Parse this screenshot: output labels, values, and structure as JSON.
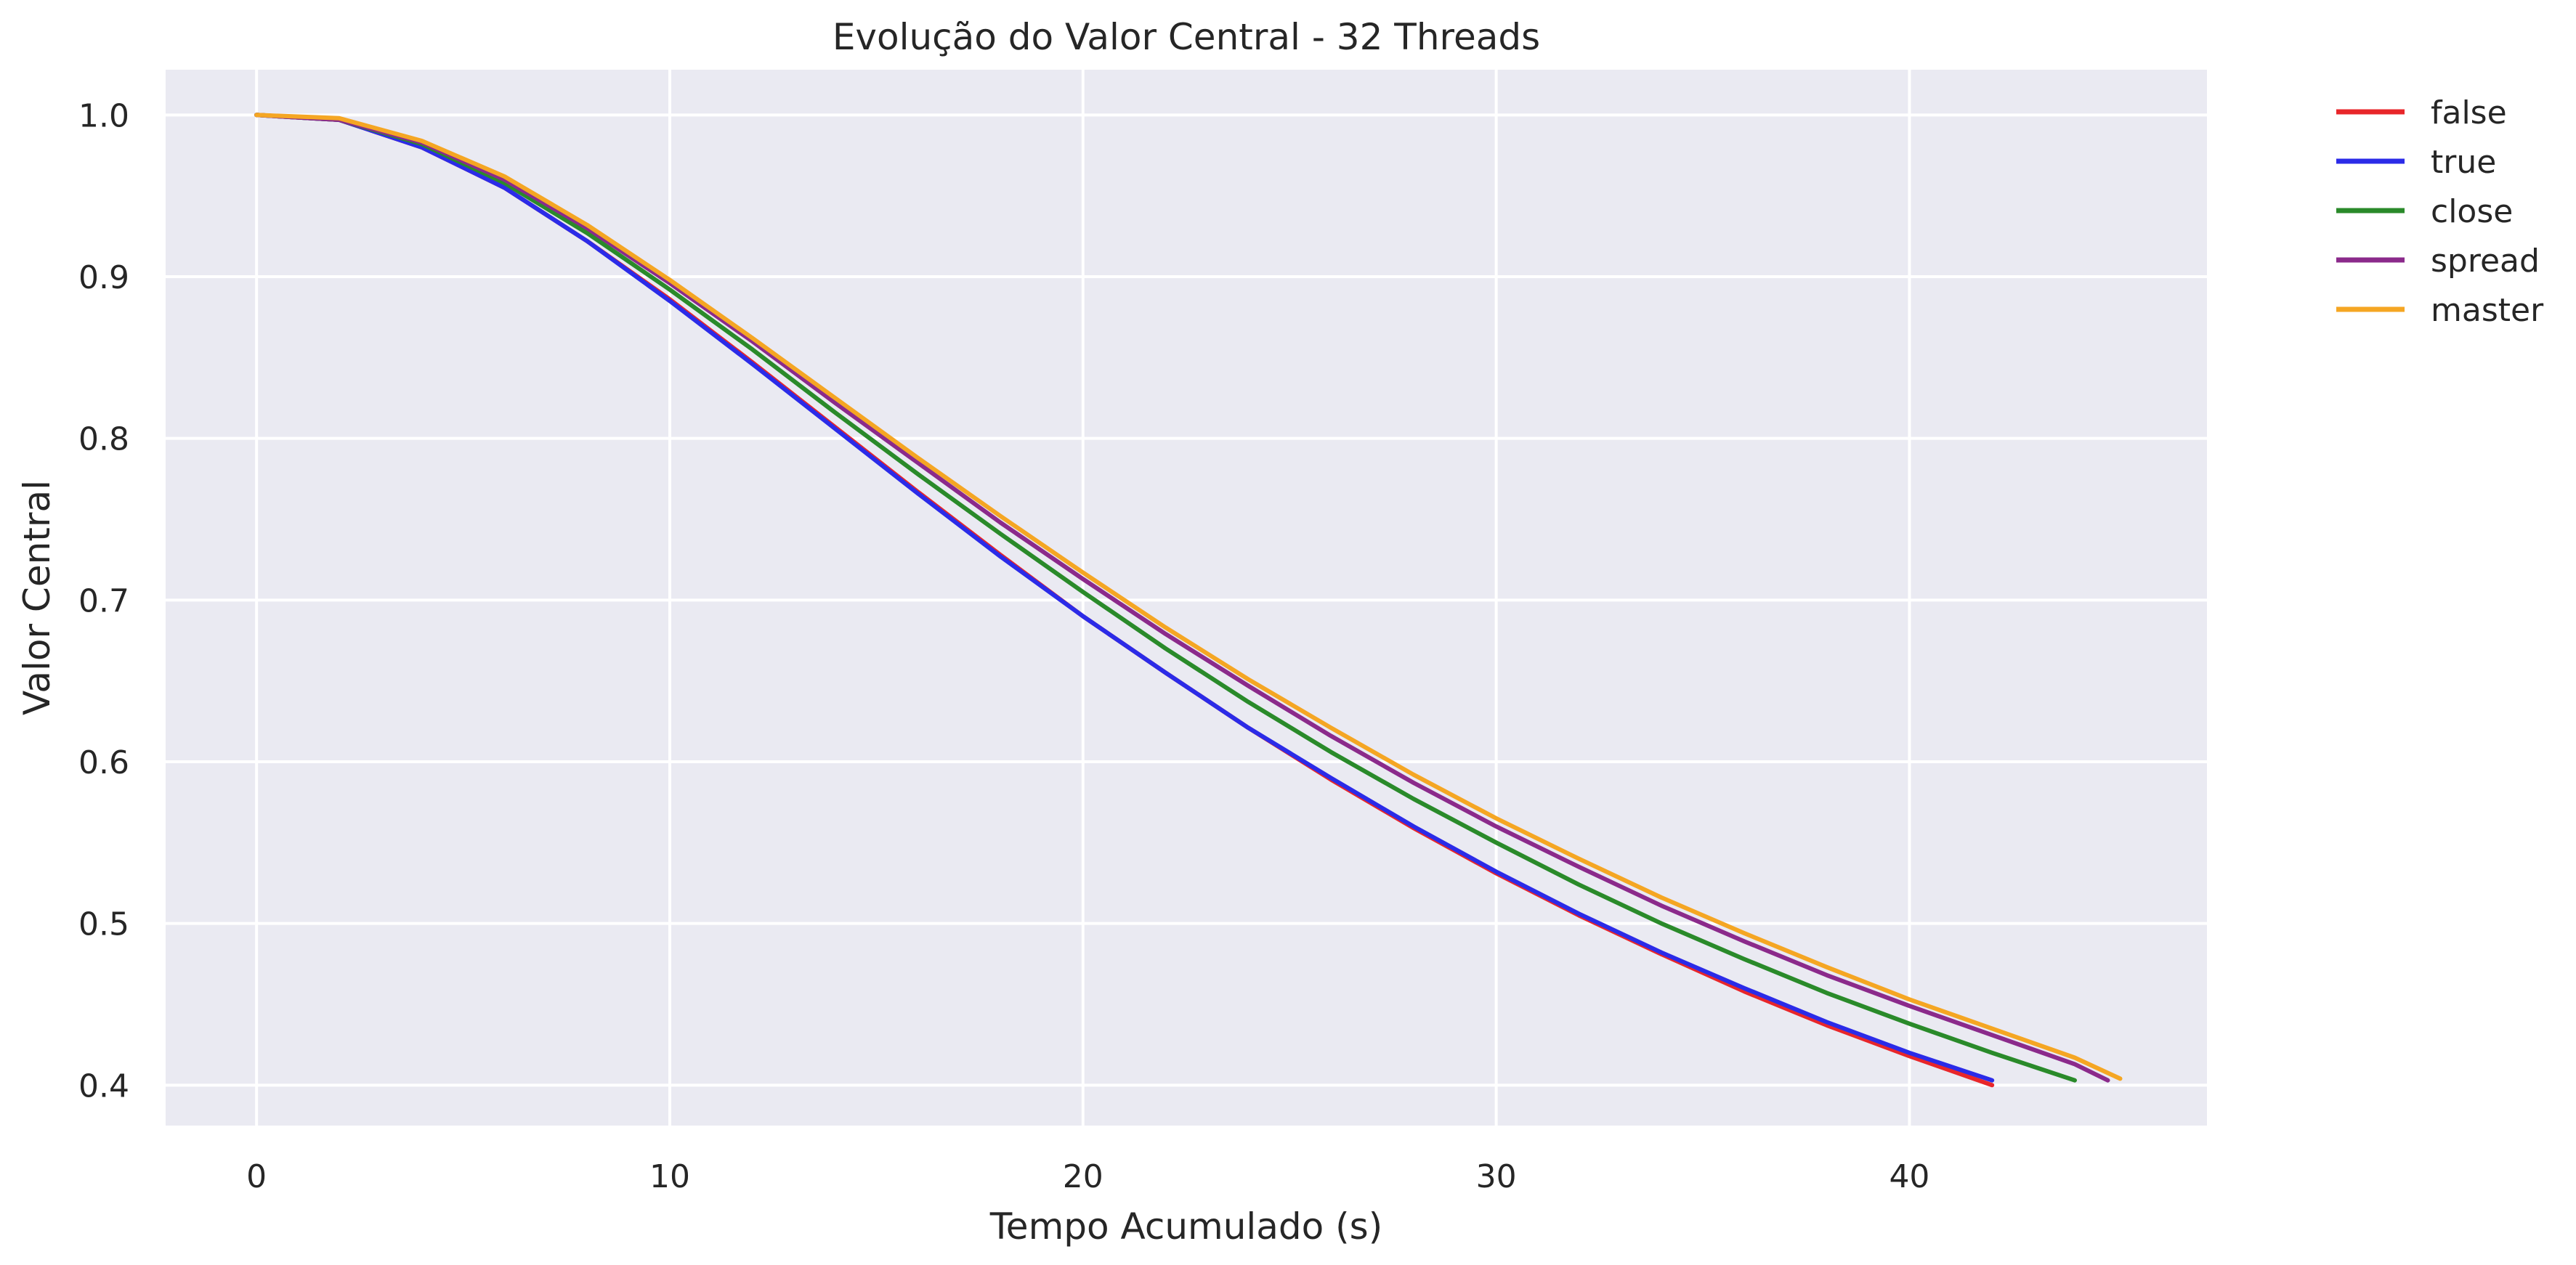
{
  "chart_data": {
    "type": "line",
    "title": "Evolução do Valor Central - 32 Threads",
    "xlabel": "Tempo Acumulado (s)",
    "ylabel": "Valor Central",
    "xlim": [
      -2.2,
      47.2
    ],
    "ylim": [
      0.375,
      1.028
    ],
    "xticks": [
      "0",
      "10",
      "20",
      "30",
      "40"
    ],
    "yticks": [
      "0.4",
      "0.5",
      "0.6",
      "0.7",
      "0.8",
      "0.9",
      "1.0"
    ],
    "grid": true,
    "legend_position": "outside-right-top",
    "series": [
      {
        "name": "false",
        "color": "#e8262a",
        "points": [
          [
            0,
            1.0
          ],
          [
            2,
            0.997
          ],
          [
            4,
            0.98
          ],
          [
            6,
            0.955
          ],
          [
            8,
            0.922
          ],
          [
            10,
            0.886
          ],
          [
            12,
            0.847
          ],
          [
            14,
            0.807
          ],
          [
            16,
            0.767
          ],
          [
            18,
            0.728
          ],
          [
            20,
            0.69
          ],
          [
            22,
            0.655
          ],
          [
            24,
            0.621
          ],
          [
            26,
            0.589
          ],
          [
            28,
            0.559
          ],
          [
            30,
            0.531
          ],
          [
            32,
            0.505
          ],
          [
            34,
            0.481
          ],
          [
            36,
            0.458
          ],
          [
            38,
            0.437
          ],
          [
            40,
            0.418
          ],
          [
            42,
            0.4
          ]
        ]
      },
      {
        "name": "true",
        "color": "#2b2be8",
        "points": [
          [
            0,
            1.0
          ],
          [
            2,
            0.997
          ],
          [
            4,
            0.98
          ],
          [
            6,
            0.955
          ],
          [
            8,
            0.922
          ],
          [
            10,
            0.885
          ],
          [
            12,
            0.846
          ],
          [
            14,
            0.806
          ],
          [
            16,
            0.766
          ],
          [
            18,
            0.727
          ],
          [
            20,
            0.69
          ],
          [
            22,
            0.655
          ],
          [
            24,
            0.621
          ],
          [
            26,
            0.59
          ],
          [
            28,
            0.56
          ],
          [
            30,
            0.532
          ],
          [
            32,
            0.506
          ],
          [
            34,
            0.482
          ],
          [
            36,
            0.46
          ],
          [
            38,
            0.439
          ],
          [
            40,
            0.42
          ],
          [
            42,
            0.403
          ]
        ]
      },
      {
        "name": "close",
        "color": "#2a8a2a",
        "points": [
          [
            0,
            1.0
          ],
          [
            2,
            0.997
          ],
          [
            4,
            0.982
          ],
          [
            6,
            0.958
          ],
          [
            8,
            0.927
          ],
          [
            10,
            0.892
          ],
          [
            12,
            0.855
          ],
          [
            14,
            0.816
          ],
          [
            16,
            0.778
          ],
          [
            18,
            0.741
          ],
          [
            20,
            0.705
          ],
          [
            22,
            0.67
          ],
          [
            24,
            0.637
          ],
          [
            26,
            0.606
          ],
          [
            28,
            0.577
          ],
          [
            30,
            0.55
          ],
          [
            32,
            0.524
          ],
          [
            34,
            0.5
          ],
          [
            36,
            0.478
          ],
          [
            38,
            0.457
          ],
          [
            40,
            0.438
          ],
          [
            42,
            0.42
          ],
          [
            44,
            0.403
          ]
        ]
      },
      {
        "name": "spread",
        "color": "#8b2a8b",
        "points": [
          [
            0,
            1.0
          ],
          [
            2,
            0.997
          ],
          [
            4,
            0.983
          ],
          [
            6,
            0.96
          ],
          [
            8,
            0.93
          ],
          [
            10,
            0.896
          ],
          [
            12,
            0.86
          ],
          [
            14,
            0.822
          ],
          [
            16,
            0.785
          ],
          [
            18,
            0.748
          ],
          [
            20,
            0.713
          ],
          [
            22,
            0.679
          ],
          [
            24,
            0.647
          ],
          [
            26,
            0.616
          ],
          [
            28,
            0.587
          ],
          [
            30,
            0.56
          ],
          [
            32,
            0.535
          ],
          [
            34,
            0.511
          ],
          [
            36,
            0.489
          ],
          [
            38,
            0.468
          ],
          [
            40,
            0.449
          ],
          [
            42,
            0.431
          ],
          [
            44,
            0.413
          ],
          [
            44.8,
            0.403
          ]
        ]
      },
      {
        "name": "master",
        "color": "#f5a623",
        "points": [
          [
            0,
            1.0
          ],
          [
            2,
            0.998
          ],
          [
            4,
            0.984
          ],
          [
            6,
            0.962
          ],
          [
            8,
            0.932
          ],
          [
            10,
            0.898
          ],
          [
            12,
            0.862
          ],
          [
            14,
            0.825
          ],
          [
            16,
            0.788
          ],
          [
            18,
            0.752
          ],
          [
            20,
            0.717
          ],
          [
            22,
            0.683
          ],
          [
            24,
            0.651
          ],
          [
            26,
            0.621
          ],
          [
            28,
            0.592
          ],
          [
            30,
            0.565
          ],
          [
            32,
            0.54
          ],
          [
            34,
            0.516
          ],
          [
            36,
            0.494
          ],
          [
            38,
            0.473
          ],
          [
            40,
            0.453
          ],
          [
            42,
            0.435
          ],
          [
            44,
            0.417
          ],
          [
            45.1,
            0.404
          ]
        ]
      }
    ]
  }
}
